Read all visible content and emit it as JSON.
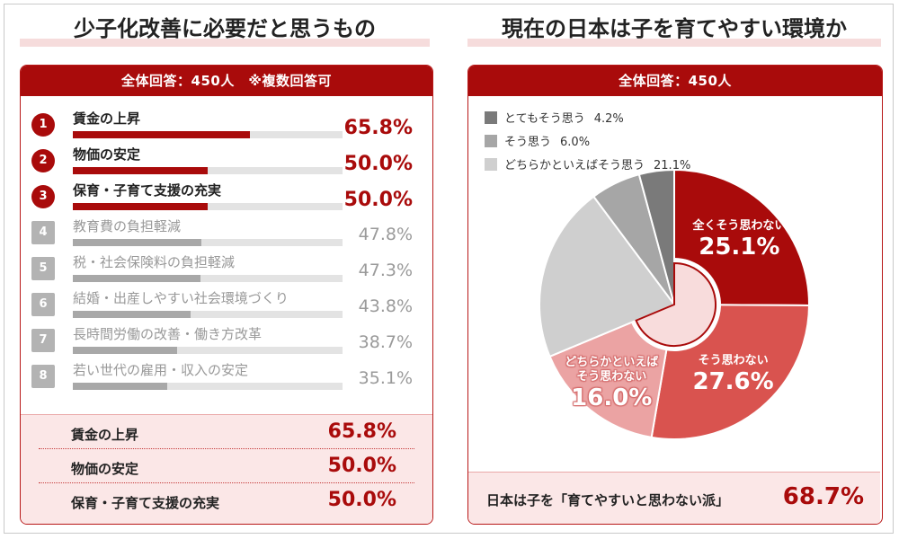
{
  "left": {
    "title": "少子化改善に必要だと思うもの",
    "header": "全体回答：450人　※複数回答可",
    "summary": [
      {
        "label": "賃金の上昇",
        "pct": "65.8%"
      },
      {
        "label": "物価の安定",
        "pct": "50.0%"
      },
      {
        "label": "保育・子育て支援の充実",
        "pct": "50.0%"
      }
    ]
  },
  "right": {
    "title": "現在の日本は子を育てやすい環境か",
    "header": "全体回答：450人",
    "footer_label": "日本は子を「育てやすいと思わない派」",
    "footer_pct": "68.7%"
  },
  "colors": {
    "accent": "#a90b0b",
    "soso_wa_nai": "#d9534f",
    "dochira_nai": "#eba3a3",
    "dochira_sou": "#cfcfcf",
    "sou": "#a6a6a6",
    "totemo": "#7a7a7a"
  },
  "chart_data": [
    {
      "type": "bar",
      "orientation": "horizontal",
      "ranks": [
        "1",
        "2",
        "3",
        "4",
        "5",
        "6",
        "7",
        "8"
      ],
      "categories": [
        "賃金の上昇",
        "物価の安定",
        "保育・子育て支援の充実",
        "教育費の負担軽減",
        "税・社会保険料の負担軽減",
        "結婚・出産しやすい社会環境づくり",
        "長時間労働の改善・働き方改革",
        "若い世代の雇用・収入の安定"
      ],
      "values": [
        65.8,
        50.0,
        50.0,
        47.8,
        47.3,
        43.8,
        38.7,
        35.1
      ],
      "value_labels": [
        "65.8%",
        "50.0%",
        "50.0%",
        "47.8%",
        "47.3%",
        "43.8%",
        "38.7%",
        "35.1%"
      ],
      "highlight_top": 3,
      "xlim": [
        0,
        100
      ]
    },
    {
      "type": "pie",
      "donut": true,
      "slices": [
        {
          "label": "全くそう思わない",
          "value": 25.1,
          "display": "25.1%",
          "color": "#a90b0b"
        },
        {
          "label": "そう思わない",
          "value": 27.6,
          "display": "27.6%",
          "color": "#d9534f"
        },
        {
          "label": "どちらかといえばそう思わない",
          "value": 16.0,
          "display": "16.0%",
          "color": "#eba3a3"
        },
        {
          "label": "どちらかといえばそう思う",
          "value": 21.1,
          "display": "21.1%",
          "color": "#cfcfcf"
        },
        {
          "label": "そう思う",
          "value": 6.0,
          "display": "6.0%",
          "color": "#a6a6a6"
        },
        {
          "label": "とてもそう思う",
          "value": 4.2,
          "display": "4.2%",
          "color": "#7a7a7a"
        }
      ],
      "slice_label_lines": {
        "全くそう思わない": [
          "全くそう思わない"
        ],
        "そう思わない": [
          "そう思わない"
        ],
        "どちらかといえばそう思わない": [
          "どちらかといえば",
          "そう思わない"
        ]
      },
      "legend": [
        {
          "label": "とてもそう思う",
          "pct": "4.2%",
          "color": "#7a7a7a"
        },
        {
          "label": "そう思う",
          "pct": "6.0%",
          "color": "#a6a6a6"
        },
        {
          "label": "どちらかといえばそう思う",
          "pct": "21.1%",
          "color": "#cfcfcf"
        }
      ],
      "legend_position": "top-left"
    }
  ]
}
